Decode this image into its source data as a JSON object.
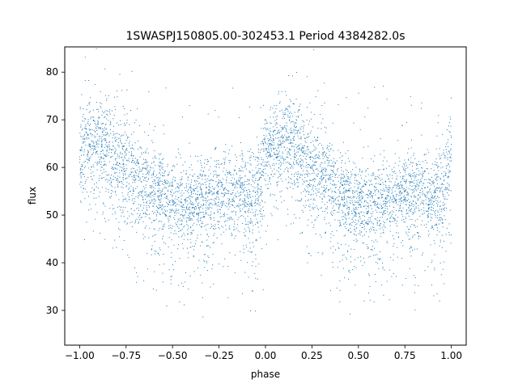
{
  "chart_data": {
    "type": "scatter",
    "title": "1SWASPJ150805.00-302453.1 Period 4384282.0s",
    "xlabel": "phase",
    "ylabel": "flux",
    "xlim": [
      -1.08,
      1.08
    ],
    "ylim": [
      22.7,
      85.3
    ],
    "x_ticks": [
      -1.0,
      -0.75,
      -0.5,
      -0.25,
      0.0,
      0.25,
      0.5,
      0.75,
      1.0
    ],
    "x_tick_labels": [
      "−1.00",
      "−0.75",
      "−0.50",
      "−0.25",
      "0.00",
      "0.25",
      "0.50",
      "0.75",
      "1.00"
    ],
    "y_ticks": [
      30,
      40,
      50,
      60,
      70,
      80
    ],
    "y_tick_labels": [
      "30",
      "40",
      "50",
      "60",
      "70",
      "80"
    ],
    "grid": false,
    "marker_color": "#1f77b4",
    "series": [
      {
        "x": [
          -1.0,
          -0.95,
          -0.9,
          -0.85,
          -0.8,
          -0.75,
          -0.7,
          -0.65,
          -0.6,
          -0.55,
          -0.5,
          -0.45,
          -0.4,
          -0.35,
          -0.3,
          -0.25,
          -0.2,
          -0.15,
          -0.1,
          -0.05,
          0.0,
          0.05,
          0.1,
          0.15,
          0.2,
          0.25,
          0.3,
          0.35,
          0.4,
          0.45,
          0.5,
          0.55,
          0.6,
          0.65,
          0.7,
          0.75,
          0.8,
          0.85,
          0.9,
          0.95,
          1.0
        ],
        "y": [
          63,
          65,
          66,
          65,
          62,
          60,
          58,
          57,
          55,
          54,
          53,
          53,
          53,
          54,
          54,
          55,
          55,
          55,
          54,
          55,
          63,
          65,
          66,
          65,
          62,
          60,
          58,
          57,
          55,
          54,
          53,
          53,
          53,
          54,
          54,
          55,
          55,
          55,
          54,
          55,
          63
        ],
        "spread": [
          5,
          4,
          4,
          5,
          5,
          5,
          5,
          4,
          4,
          4,
          4,
          4,
          4,
          4,
          4,
          4,
          4,
          4,
          4,
          5,
          5,
          4,
          4,
          5,
          5,
          5,
          5,
          4,
          4,
          4,
          4,
          4,
          4,
          4,
          4,
          4,
          4,
          4,
          4,
          5,
          5
        ]
      }
    ]
  }
}
